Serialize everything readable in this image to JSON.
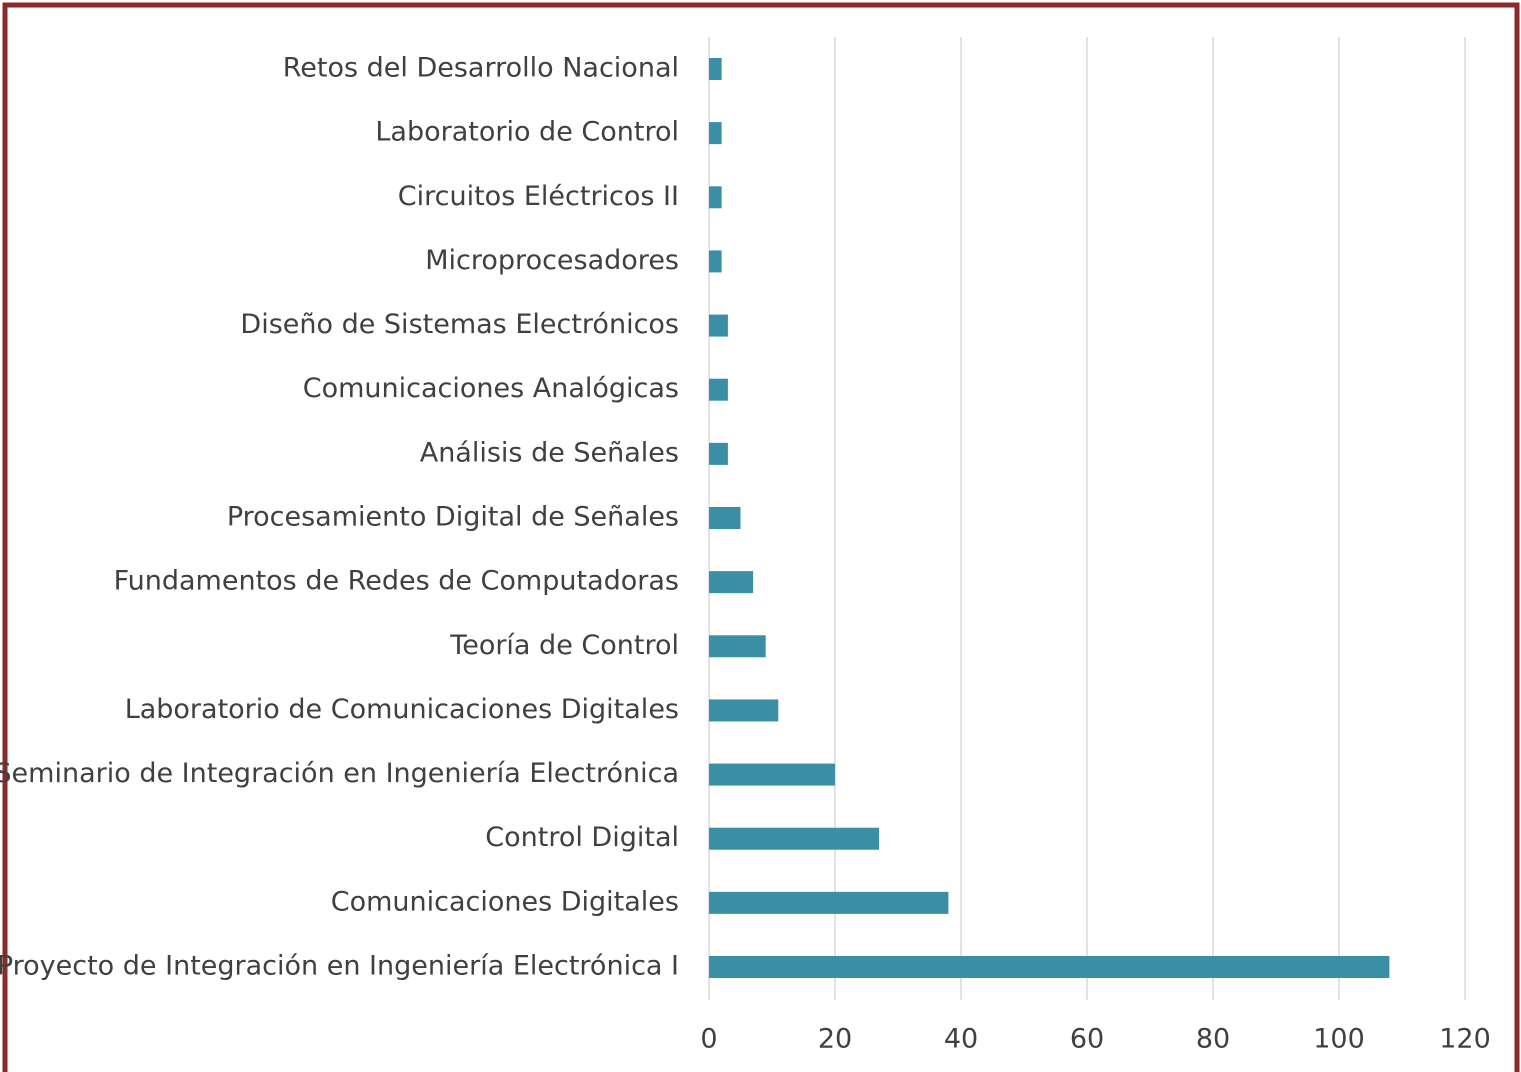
{
  "chart_data": {
    "type": "hbar",
    "categories": [
      "Retos del Desarrollo Nacional",
      "Laboratorio de Control",
      "Circuitos Eléctricos II",
      "Microprocesadores",
      "Diseño de Sistemas Electrónicos",
      "Comunicaciones Analógicas",
      "Análisis de Señales",
      "Procesamiento Digital de Señales",
      "Fundamentos de Redes de Computadoras",
      "Teoría de Control",
      "Laboratorio de Comunicaciones Digitales",
      "Seminario de Integración en Ingeniería Electrónica",
      "Control Digital",
      "Comunicaciones Digitales",
      "Proyecto de Integración en Ingeniería Electrónica I"
    ],
    "values": [
      2,
      2,
      2,
      2,
      3,
      3,
      3,
      5,
      7,
      9,
      11,
      20,
      27,
      38,
      108
    ],
    "color": "#3a8fa6",
    "xlim": [
      0,
      120
    ],
    "xticks": [
      0,
      20,
      40,
      60,
      80,
      100,
      120
    ],
    "grid": true
  }
}
